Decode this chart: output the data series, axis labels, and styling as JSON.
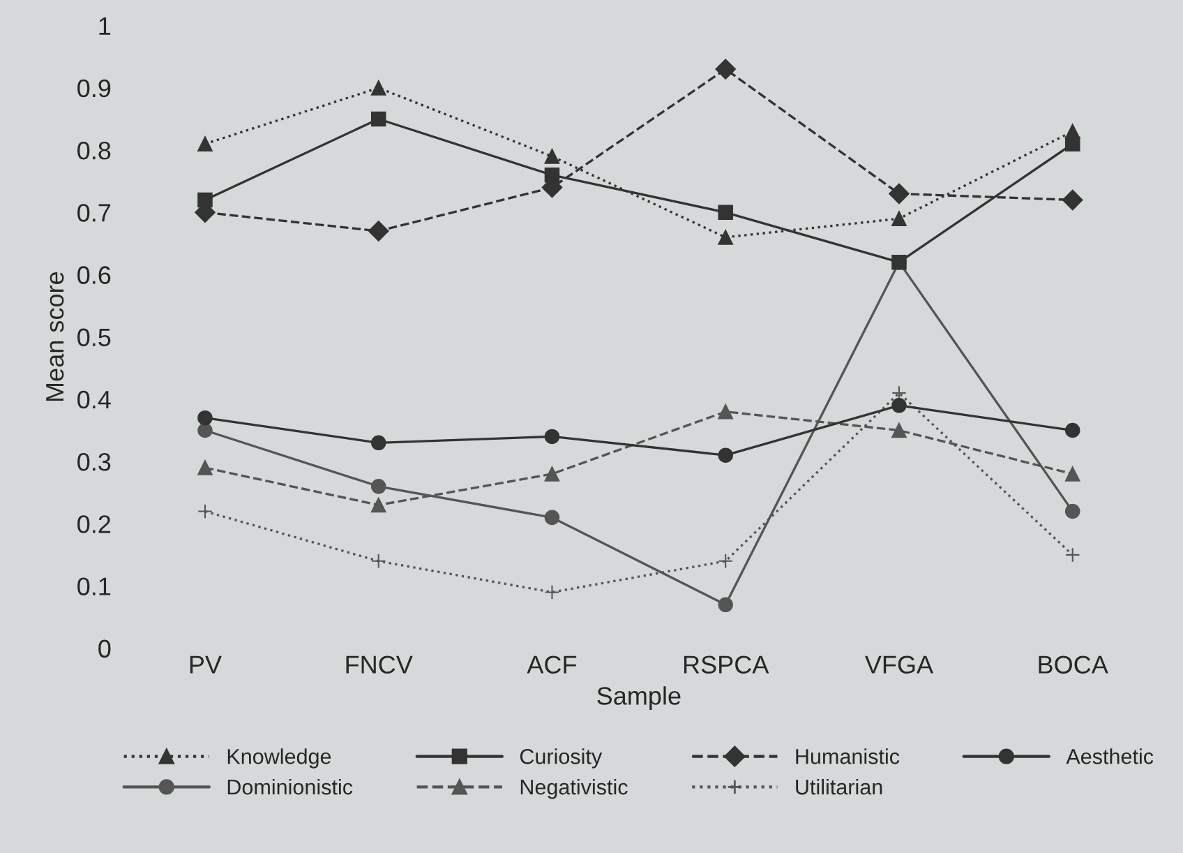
{
  "chart_data": {
    "type": "line",
    "xlabel": "Sample",
    "ylabel": "Mean score",
    "categories": [
      "PV",
      "FNCV",
      "ACF",
      "RSPCA",
      "VFGA",
      "BOCA"
    ],
    "ylim": [
      0,
      1
    ],
    "yticks": [
      0,
      0.1,
      0.2,
      0.3,
      0.4,
      0.5,
      0.6,
      0.7,
      0.8,
      0.9,
      1
    ],
    "grid": false,
    "legend": "bottom",
    "series": [
      {
        "name": "Knowledge",
        "color": "#333333",
        "marker": "triangle",
        "line_style": "dotted",
        "values": [
          0.81,
          0.9,
          0.79,
          0.66,
          0.69,
          0.83
        ]
      },
      {
        "name": "Curiosity",
        "color": "#333333",
        "marker": "square",
        "line_style": "solid",
        "values": [
          0.72,
          0.85,
          0.76,
          0.7,
          0.62,
          0.81
        ]
      },
      {
        "name": "Humanistic",
        "color": "#333333",
        "marker": "diamond",
        "line_style": "dashed",
        "values": [
          0.7,
          0.67,
          0.74,
          0.93,
          0.73,
          0.72
        ]
      },
      {
        "name": "Aesthetic",
        "color": "#333333",
        "marker": "circle",
        "line_style": "solid",
        "values": [
          0.37,
          0.33,
          0.34,
          0.31,
          0.39,
          0.35
        ]
      },
      {
        "name": "Dominionistic",
        "color": "#555555",
        "marker": "circle",
        "line_style": "solid",
        "values": [
          0.35,
          0.26,
          0.21,
          0.07,
          0.62,
          0.22
        ]
      },
      {
        "name": "Negativistic",
        "color": "#555555",
        "marker": "triangle",
        "line_style": "dashed",
        "values": [
          0.29,
          0.23,
          0.28,
          0.38,
          0.35,
          0.28
        ]
      },
      {
        "name": "Utilitarian",
        "color": "#555555",
        "marker": "cross",
        "line_style": "dotted",
        "values": [
          0.22,
          0.14,
          0.09,
          0.14,
          0.41,
          0.15
        ]
      }
    ]
  }
}
